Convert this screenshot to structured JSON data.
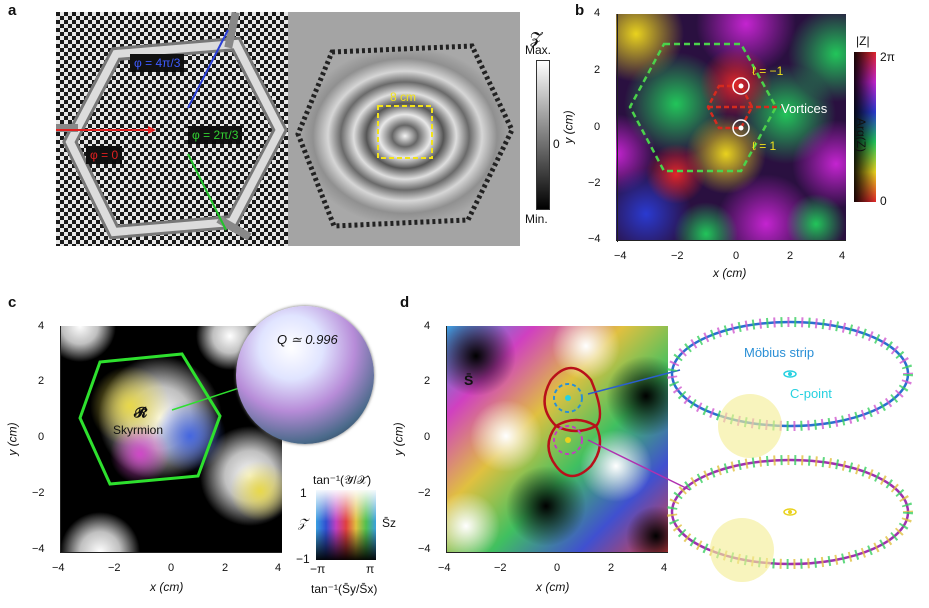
{
  "panels": {
    "a": {
      "letter": "a",
      "phase_labels": [
        "φ = 4π/3",
        "φ = 2π/3",
        "φ = 0"
      ],
      "colorbar": {
        "symbol": "𝓩",
        "max": "Max.",
        "zero": "0",
        "min": "Min."
      },
      "scale_label": "8 cm"
    },
    "b": {
      "letter": "b",
      "xlabel": "x (cm)",
      "ylabel": "y (cm)",
      "xticks": [
        "−4",
        "−2",
        "0",
        "2",
        "4"
      ],
      "yticks": [
        "4",
        "2",
        "0",
        "−2",
        "−4"
      ],
      "annotations": {
        "l_minus": "ℓ = −1",
        "vortices": "Vortices",
        "l_plus": "ℓ = 1"
      },
      "colorbar": {
        "top_label": "|Z|",
        "top_value": "2π",
        "side_label": "Arg(Z)",
        "bottom_value": "0"
      }
    },
    "c": {
      "letter": "c",
      "xlabel": "x (cm)",
      "ylabel": "y (cm)",
      "xticks": [
        "−4",
        "−2",
        "0",
        "2",
        "4"
      ],
      "yticks": [
        "4",
        "2",
        "0",
        "−2",
        "−4"
      ],
      "skyrmion_symbol": "𝓡̄",
      "skyrmion_label": "Skyrmion",
      "sphere_label": "Q ≃ 0.996",
      "legend": {
        "top_title": "tan⁻¹(𝒴̄/𝒳̄)",
        "left_label": "𝒵̄",
        "right_label": "S̄z",
        "y_top": "1",
        "y_bottom": "−1",
        "x_left": "−π",
        "x_right": "π",
        "bottom_title": "tan⁻¹(S̄y/S̄x)"
      }
    },
    "d": {
      "letter": "d",
      "xlabel": "x (cm)",
      "ylabel": "y (cm)",
      "xticks": [
        "−4",
        "−2",
        "0",
        "2",
        "4"
      ],
      "yticks": [
        "4",
        "2",
        "0",
        "−2",
        "−4"
      ],
      "field_label": "S̄",
      "mobius_label": "Möbius strip",
      "cpoint_label": "C-point"
    }
  },
  "colors": {
    "phase_blue": "#2a3fd6",
    "phase_green": "#22c22a",
    "phase_red": "#e02020",
    "dashed_yellow": "#f2e21a",
    "dashed_green": "#4bd24b",
    "dashed_red": "#d62a1e",
    "skyrmion_outline": "#2ee02e",
    "mobius_blue": "#2a8fd6",
    "cpoint_cyan": "#27d1e0"
  }
}
